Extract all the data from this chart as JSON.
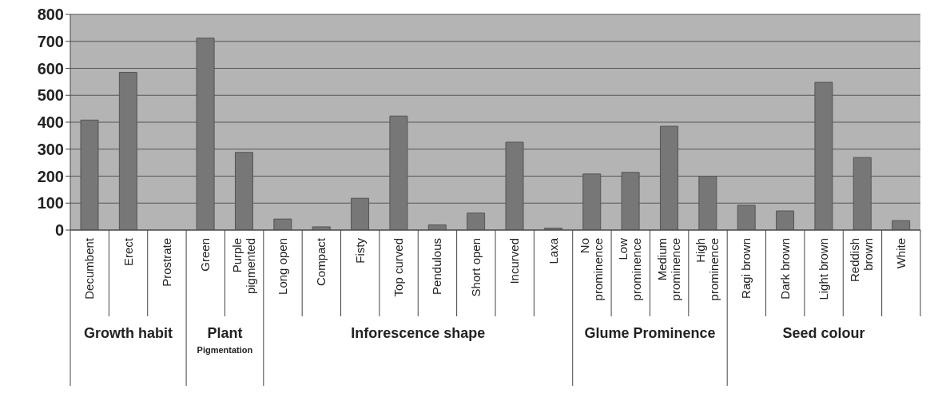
{
  "chart_data": {
    "type": "bar",
    "categories": [
      "Decumbent",
      "Erect",
      "Prostrate",
      "Green",
      "Purple pigmented",
      "Long open",
      "Compact",
      "Fisty",
      "Top curved",
      "Pendulous",
      "Short open",
      "Incurved",
      "Laxa",
      "No prominence",
      "Low prominence",
      "Medium prominence",
      "High prominence",
      "Ragi brown",
      "Dark brown",
      "Light brown",
      "Reddish brown",
      "White"
    ],
    "values": [
      408,
      585,
      0,
      712,
      288,
      41,
      12,
      118,
      423,
      19,
      63,
      326,
      7,
      208,
      214,
      385,
      200,
      92,
      71,
      548,
      269,
      35
    ],
    "color": "#777777",
    "ylim": [
      0,
      800
    ],
    "yticks": [
      0,
      100,
      200,
      300,
      400,
      500,
      600,
      700,
      800
    ],
    "grid": "y",
    "annotations": [
      "Growth habit",
      "Plant",
      "Pigmentation",
      "Inforescence shape",
      "Glume Prominence",
      "Seed colour"
    ]
  }
}
